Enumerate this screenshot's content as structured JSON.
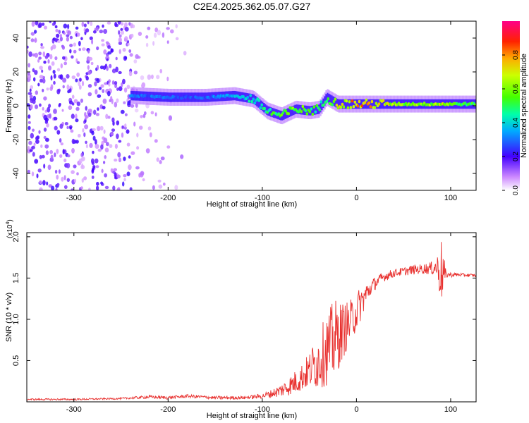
{
  "title": "C2E4.2025.362.05.07.G27",
  "chart_data": [
    {
      "type": "heatmap",
      "xlabel": "Height of straight line (km)",
      "ylabel": "Frequency (Hz)",
      "xlim": [
        -350,
        127
      ],
      "ylim": [
        -50,
        50
      ],
      "xticks": [
        -300,
        -200,
        -100,
        0,
        100
      ],
      "yticks": [
        -40,
        -20,
        0,
        20,
        40
      ],
      "xtick_labels": [
        "-300",
        "-200",
        "-100",
        "0",
        "100"
      ],
      "ytick_labels": [
        "-40",
        "-20",
        "0",
        "20",
        "40"
      ],
      "colorbar": {
        "label": "Normalized spectral amplitude",
        "range": [
          0,
          1
        ],
        "ticks": [
          0.0,
          0.2,
          0.4,
          0.6,
          0.8
        ],
        "tick_labels": [
          "0.0",
          "0.2",
          "0.4",
          "0.6",
          "0.8"
        ],
        "colormap": [
          "#f2e6ff",
          "#8a2be2",
          "#3300ff",
          "#00ccff",
          "#00ff66",
          "#aaff00",
          "#ffcc00",
          "#ff3300",
          "#ff0066"
        ]
      },
      "signal_ridge": {
        "x": [
          -240,
          -200,
          -160,
          -130,
          -110,
          -95,
          -80,
          -65,
          -50,
          -40,
          -32,
          -20,
          0,
          20,
          50,
          85,
          90,
          100,
          127
        ],
        "center_freq": [
          6,
          5,
          5,
          6,
          4,
          -3,
          -6,
          -2,
          -3,
          -2,
          5,
          1,
          1,
          1,
          1,
          1,
          1,
          1,
          1
        ],
        "amplitude": [
          0.3,
          0.3,
          0.3,
          0.35,
          0.45,
          0.5,
          0.55,
          0.6,
          0.55,
          0.5,
          0.45,
          0.7,
          0.8,
          0.75,
          0.6,
          0.65,
          0.7,
          0.55,
          0.55
        ]
      },
      "noise_region": {
        "x_end": -240,
        "sparse_bands": [
          [
            -225,
            -205
          ],
          [
            -175,
            -150
          ]
        ]
      }
    },
    {
      "type": "line",
      "xlabel": "Height of straight line (km)",
      "ylabel": "SNR (10 * v/v)",
      "scale_label": "(x10",
      "scale_exponent": "4",
      "xlim": [
        -350,
        127
      ],
      "ylim": [
        0,
        2.05
      ],
      "xticks": [
        -300,
        -200,
        -100,
        0,
        100
      ],
      "yticks": [
        0.5,
        1.0,
        1.5,
        2.0
      ],
      "xtick_labels": [
        "-300",
        "-200",
        "-100",
        "0",
        "100"
      ],
      "ytick_labels": [
        "0.5",
        "1.0",
        "1.5",
        "2.0"
      ],
      "series": [
        {
          "color": "#e8312f",
          "x": [
            -350,
            -300,
            -250,
            -220,
            -200,
            -180,
            -150,
            -120,
            -100,
            -90,
            -80,
            -70,
            -60,
            -50,
            -45,
            -40,
            -35,
            -30,
            -25,
            -20,
            -15,
            -10,
            -5,
            0,
            5,
            10,
            15,
            20,
            30,
            40,
            50,
            60,
            70,
            80,
            85,
            88,
            90,
            92,
            95,
            100,
            110,
            127
          ],
          "values": [
            0.03,
            0.03,
            0.04,
            0.06,
            0.05,
            0.07,
            0.05,
            0.05,
            0.07,
            0.1,
            0.14,
            0.2,
            0.28,
            0.38,
            0.45,
            0.5,
            0.58,
            0.65,
            0.72,
            0.8,
            0.86,
            0.92,
            1.0,
            1.1,
            1.2,
            1.3,
            1.38,
            1.44,
            1.52,
            1.56,
            1.58,
            1.6,
            1.61,
            1.62,
            1.63,
            1.6,
            1.58,
            1.55,
            1.54,
            1.54,
            1.54,
            1.53
          ],
          "spread": [
            0.01,
            0.01,
            0.01,
            0.02,
            0.02,
            0.02,
            0.02,
            0.02,
            0.03,
            0.05,
            0.08,
            0.12,
            0.16,
            0.22,
            0.3,
            0.35,
            0.4,
            0.45,
            0.5,
            0.45,
            0.35,
            0.3,
            0.25,
            0.25,
            0.2,
            0.15,
            0.1,
            0.08,
            0.06,
            0.05,
            0.05,
            0.06,
            0.06,
            0.08,
            0.12,
            0.3,
            0.4,
            0.3,
            0.04,
            0.03,
            0.02,
            0.02
          ]
        }
      ]
    }
  ]
}
